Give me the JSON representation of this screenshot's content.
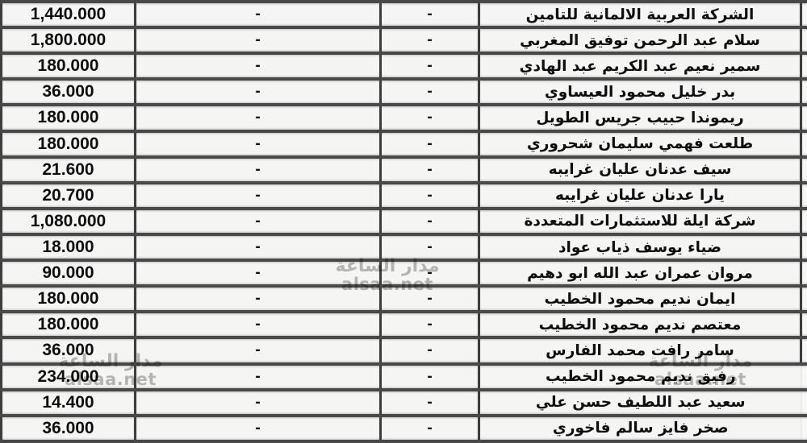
{
  "watermark": {
    "site_name_ar": "مدار الساعة",
    "site_domain": "alsaa.net"
  },
  "colors": {
    "border_dark": "#3e3e3e",
    "border_row": "#484848",
    "cell_background": "#f5f5f4",
    "text": "#0e0e0e",
    "watermark_gray": "#b2b0ad"
  },
  "table": {
    "rows": [
      {
        "amount": "1,440.000",
        "col2": "-",
        "col3": "-",
        "name": "الشركة العربية الالمانية للتامين"
      },
      {
        "amount": "1,800.000",
        "col2": "-",
        "col3": "-",
        "name": "سلام عبد الرحمن توفيق المغربي"
      },
      {
        "amount": "180.000",
        "col2": "-",
        "col3": "-",
        "name": "سمير نعيم عبد الكريم عبد الهادي"
      },
      {
        "amount": "36.000",
        "col2": "-",
        "col3": "-",
        "name": "بدر خليل محمود العيساوي"
      },
      {
        "amount": "180.000",
        "col2": "-",
        "col3": "-",
        "name": "ريموندا حبيب جريس الطويل"
      },
      {
        "amount": "180.000",
        "col2": "-",
        "col3": "-",
        "name": "طلعت فهمي سليمان شحروري"
      },
      {
        "amount": "21.600",
        "col2": "-",
        "col3": "-",
        "name": "سيف عدنان عليان غرايبه"
      },
      {
        "amount": "20.700",
        "col2": "-",
        "col3": "-",
        "name": "يارا عدنان عليان غرايبه"
      },
      {
        "amount": "1,080.000",
        "col2": "-",
        "col3": "-",
        "name": "شركة ايلة للاستثمارات المتعددة"
      },
      {
        "amount": "18.000",
        "col2": "-",
        "col3": "-",
        "name": "ضياء يوسف ذياب عواد"
      },
      {
        "amount": "90.000",
        "col2": "-",
        "col3": "-",
        "name": "مروان عمران عبد الله ابو دهيم"
      },
      {
        "amount": "180.000",
        "col2": "-",
        "col3": "-",
        "name": "ايمان نديم محمود الخطيب"
      },
      {
        "amount": "180.000",
        "col2": "-",
        "col3": "-",
        "name": "معتصم نديم محمود الخطيب"
      },
      {
        "amount": "36.000",
        "col2": "-",
        "col3": "-",
        "name": "سامر رافت محمد الفارس"
      },
      {
        "amount": "234.000",
        "col2": "-",
        "col3": "-",
        "name": "رفيق نديم محمود الخطيب"
      },
      {
        "amount": "14.400",
        "col2": "-",
        "col3": "-",
        "name": "سعيد عبد اللطيف حسن علي"
      },
      {
        "amount": "36.000",
        "col2": "-",
        "col3": "-",
        "name": "صخر فايز سالم فاخوري"
      }
    ]
  }
}
